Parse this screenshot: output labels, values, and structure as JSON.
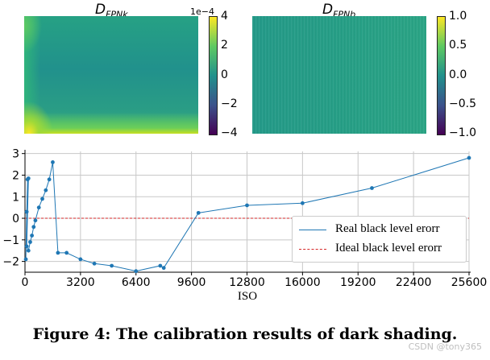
{
  "figure_caption": "Figure 4: The calibration results of dark shading.",
  "watermark": "CSDN @tony365",
  "colors": {
    "line": "#1f77b4",
    "ideal": "#d62728",
    "grid": "#c8c8c8",
    "viridis": [
      "#440154",
      "#3b528b",
      "#21918c",
      "#5ec962",
      "#fde725"
    ]
  },
  "chart_data": [
    {
      "type": "heatmap",
      "title_main": "D",
      "title_sub": "FPNk",
      "colorbar": {
        "range": [
          -4,
          4
        ],
        "ticks": [
          "4",
          "2",
          "0",
          "−2",
          "−4"
        ],
        "tick_values": [
          4,
          2,
          0,
          -2,
          -4
        ],
        "offset_label": "1e−4"
      }
    },
    {
      "type": "heatmap",
      "title_main": "D",
      "title_sub": "FPNb",
      "colorbar": {
        "range": [
          -1,
          1
        ],
        "ticks": [
          "1.0",
          "0.5",
          "0.0",
          "−0.5",
          "−1.0"
        ],
        "tick_values": [
          1,
          0.5,
          0,
          -0.5,
          -1
        ]
      }
    },
    {
      "type": "line",
      "xlabel": "ISO",
      "xlim": [
        0,
        25600
      ],
      "ylim": [
        -2.5,
        3.1
      ],
      "xticks": [
        0,
        3200,
        6400,
        9600,
        12800,
        16000,
        19200,
        22400,
        25600
      ],
      "xtick_labels": [
        "0",
        "3200",
        "6400",
        "9600",
        "12800",
        "16000",
        "19200",
        "22400",
        "25600"
      ],
      "yticks": [
        -2,
        -1,
        0,
        1,
        2,
        3
      ],
      "ytick_labels": [
        "−2",
        "−1",
        "0",
        "1",
        "2",
        "3"
      ],
      "grid": true,
      "legend_position": "lower-right",
      "series": [
        {
          "name": "Real black level erorr",
          "x": [
            50,
            100,
            150,
            200,
            100,
            200,
            300,
            400,
            500,
            600,
            800,
            1000,
            1200,
            1400,
            1600,
            1900,
            2400,
            3200,
            4000,
            5000,
            6400,
            7800,
            8000,
            10000,
            12800,
            16000,
            20000,
            25600
          ],
          "y": [
            -1.9,
            0.3,
            1.8,
            1.85,
            -1.3,
            -1.5,
            -1.1,
            -0.8,
            -0.4,
            -0.1,
            0.5,
            0.9,
            1.3,
            1.8,
            2.6,
            -1.6,
            -1.6,
            -1.9,
            -2.1,
            -2.2,
            -2.45,
            -2.2,
            -2.3,
            0.25,
            0.6,
            0.7,
            1.4,
            2.8
          ]
        },
        {
          "name": "Ideal black level erorr",
          "x": [
            0,
            25600
          ],
          "y": [
            0,
            0
          ]
        }
      ]
    }
  ]
}
